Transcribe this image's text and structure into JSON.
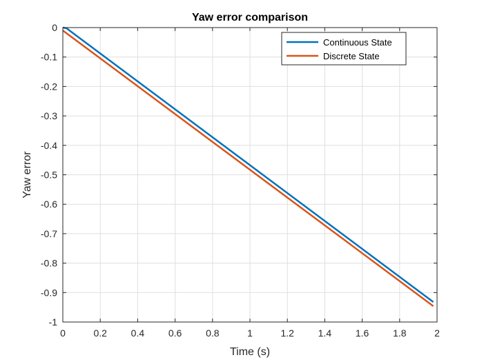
{
  "chart_data": {
    "type": "line",
    "title": "Yaw error comparison",
    "xlabel": "Time (s)",
    "ylabel": "Yaw error",
    "xlim": [
      0,
      2
    ],
    "ylim": [
      -1,
      0
    ],
    "xticks": [
      0,
      0.2,
      0.4,
      0.6,
      0.8,
      1,
      1.2,
      1.4,
      1.6,
      1.8,
      2
    ],
    "yticks": [
      0,
      -0.1,
      -0.2,
      -0.3,
      -0.4,
      -0.5,
      -0.6,
      -0.7,
      -0.8,
      -0.9,
      -1
    ],
    "xtick_labels": [
      "0",
      "0.2",
      "0.4",
      "0.6",
      "0.8",
      "1",
      "1.2",
      "1.4",
      "1.6",
      "1.8",
      "2"
    ],
    "ytick_labels": [
      "0",
      "-0.1",
      "-0.2",
      "-0.3",
      "-0.4",
      "-0.5",
      "-0.6",
      "-0.7",
      "-0.8",
      "-0.9",
      "-1"
    ],
    "grid": true,
    "legend_position": "top-right",
    "series": [
      {
        "name": "Continuous State",
        "color": "#0072BD",
        "x": [
          0,
          0.02,
          0.04,
          1.98
        ],
        "y": [
          0,
          -0.002,
          -0.012,
          -0.932
        ]
      },
      {
        "name": "Discrete State",
        "color": "#D95319",
        "x": [
          0,
          1.98
        ],
        "y": [
          -0.01,
          -0.946
        ]
      }
    ]
  }
}
